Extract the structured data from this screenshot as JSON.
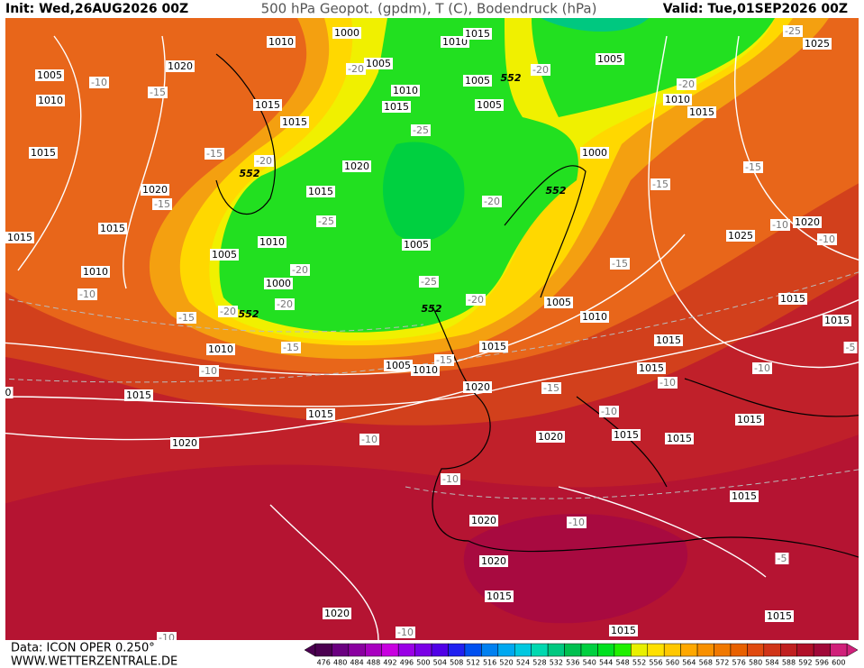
{
  "header": {
    "init": "Init: Wed,26AUG2026 00Z",
    "title": "500 hPa Geopot. (gpdm), T (C), Bodendruck (hPa)",
    "valid": "Valid: Tue,01SEP2026 00Z"
  },
  "footer": {
    "data": "Data: ICON OPER 0.250°",
    "site": "WWW.WETTERZENTRALE.DE"
  },
  "colorbar": {
    "labels": [
      476,
      480,
      484,
      488,
      492,
      496,
      500,
      504,
      508,
      512,
      516,
      520,
      524,
      528,
      532,
      536,
      540,
      544,
      548,
      552,
      556,
      560,
      564,
      568,
      572,
      576,
      580,
      584,
      588,
      592,
      596,
      600
    ],
    "colors": [
      "#4b0050",
      "#6a0080",
      "#8a00a0",
      "#a800c0",
      "#c800e0",
      "#9a00e6",
      "#7a00e6",
      "#5000e6",
      "#2020f0",
      "#0050f0",
      "#0080f0",
      "#00a8f0",
      "#00c8e0",
      "#00d8b0",
      "#00c880",
      "#00c050",
      "#00d040",
      "#00e020",
      "#20f000",
      "#e8f000",
      "#ffe000",
      "#ffc800",
      "#ffa800",
      "#f89000",
      "#f07800",
      "#e86000",
      "#e04a10",
      "#d03418",
      "#c02020",
      "#b01028",
      "#a00838",
      "#d0207a"
    ]
  },
  "map_labels": [
    "1010",
    "1000",
    "1010",
    "1015",
    "1005",
    "1025",
    "-25",
    "1020",
    "1005",
    "-10",
    "-15",
    "1010",
    "-20",
    "1005",
    "1010",
    "1005",
    "552",
    "-20",
    "-20",
    "1010",
    "1015",
    "1015",
    "1015",
    "1015",
    "1005",
    "-25",
    "1000",
    "1015",
    "-15",
    "-20",
    "1020",
    "552",
    "1020",
    "-15",
    "1015",
    "552",
    "-15",
    "-20",
    "-15",
    "1020",
    "-10",
    "-10",
    "1025",
    "1015",
    "1015",
    "-25",
    "1005",
    "1010",
    "1005",
    "-15",
    "1010",
    "-20",
    "1000",
    "-25",
    "-10",
    "-20",
    "-20",
    "1005",
    "1015",
    "-15",
    "-20",
    "552",
    "552",
    "1010",
    "1015",
    "1010",
    "-15",
    "1015",
    "1015",
    "-5",
    "1005",
    "1010",
    "-15",
    "1015",
    "-10",
    "-10",
    "-10",
    "1015",
    "1020",
    "-15",
    "1015",
    "-10",
    "1015",
    "-10",
    "1020",
    "1020",
    "1015",
    "1015",
    "-10",
    "1015",
    "1020",
    "-10",
    "1020",
    "-5",
    "1015",
    "1020",
    "1015",
    "-10",
    "1015",
    "-10",
    "0"
  ]
}
